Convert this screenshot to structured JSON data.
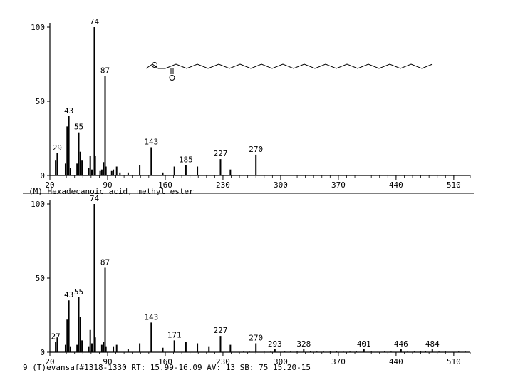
{
  "chart_data": [
    {
      "type": "bar",
      "caption": "(M) Hexadecanoic acid, methyl ester",
      "xlim": [
        20,
        530
      ],
      "ylim": [
        0,
        100
      ],
      "x_ticks": [
        "20",
        "90",
        "160",
        "230",
        "300",
        "370",
        "440",
        "510"
      ],
      "y_ticks": [
        "0",
        "50",
        "100"
      ],
      "peaks": [
        {
          "x": 27,
          "y": 10
        },
        {
          "x": 29,
          "y": 15
        },
        {
          "x": 39,
          "y": 8
        },
        {
          "x": 41,
          "y": 33
        },
        {
          "x": 43,
          "y": 40
        },
        {
          "x": 45,
          "y": 5
        },
        {
          "x": 53,
          "y": 8
        },
        {
          "x": 55,
          "y": 29
        },
        {
          "x": 57,
          "y": 16
        },
        {
          "x": 59,
          "y": 10
        },
        {
          "x": 67,
          "y": 5
        },
        {
          "x": 69,
          "y": 13
        },
        {
          "x": 71,
          "y": 4
        },
        {
          "x": 74,
          "y": 100
        },
        {
          "x": 75,
          "y": 13
        },
        {
          "x": 81,
          "y": 3
        },
        {
          "x": 83,
          "y": 4
        },
        {
          "x": 85,
          "y": 9
        },
        {
          "x": 87,
          "y": 67
        },
        {
          "x": 88,
          "y": 6
        },
        {
          "x": 95,
          "y": 3
        },
        {
          "x": 97,
          "y": 4
        },
        {
          "x": 101,
          "y": 6
        },
        {
          "x": 105,
          "y": 2
        },
        {
          "x": 115,
          "y": 2
        },
        {
          "x": 129,
          "y": 7
        },
        {
          "x": 143,
          "y": 19
        },
        {
          "x": 157,
          "y": 2
        },
        {
          "x": 171,
          "y": 6
        },
        {
          "x": 185,
          "y": 7
        },
        {
          "x": 199,
          "y": 6
        },
        {
          "x": 227,
          "y": 11
        },
        {
          "x": 239,
          "y": 4
        },
        {
          "x": 270,
          "y": 14
        }
      ],
      "peak_labels": [
        {
          "x": 29,
          "y": 15,
          "text": "29"
        },
        {
          "x": 43,
          "y": 40,
          "text": "43"
        },
        {
          "x": 55,
          "y": 29,
          "text": "55"
        },
        {
          "x": 74,
          "y": 100,
          "text": "74"
        },
        {
          "x": 87,
          "y": 67,
          "text": "87"
        },
        {
          "x": 143,
          "y": 19,
          "text": "143"
        },
        {
          "x": 185,
          "y": 7,
          "text": "185"
        },
        {
          "x": 227,
          "y": 11,
          "text": "227"
        },
        {
          "x": 270,
          "y": 14,
          "text": "270"
        }
      ],
      "structure": "O=C(OC)CCCCCCCCCCCCCCC"
    },
    {
      "type": "bar",
      "caption": "9 (T)evansaf#1318-1330 RT: 15.99-16.09 AV: 13 SB: 75 15.20-15",
      "xlim": [
        20,
        530
      ],
      "ylim": [
        0,
        100
      ],
      "x_ticks": [
        "20",
        "90",
        "160",
        "230",
        "300",
        "370",
        "440",
        "510"
      ],
      "y_ticks": [
        "0",
        "50",
        "100"
      ],
      "peaks": [
        {
          "x": 27,
          "y": 7
        },
        {
          "x": 29,
          "y": 10
        },
        {
          "x": 39,
          "y": 5
        },
        {
          "x": 41,
          "y": 22
        },
        {
          "x": 43,
          "y": 35
        },
        {
          "x": 45,
          "y": 4
        },
        {
          "x": 53,
          "y": 5
        },
        {
          "x": 55,
          "y": 37
        },
        {
          "x": 57,
          "y": 24
        },
        {
          "x": 59,
          "y": 8
        },
        {
          "x": 67,
          "y": 4
        },
        {
          "x": 69,
          "y": 15
        },
        {
          "x": 71,
          "y": 6
        },
        {
          "x": 74,
          "y": 100
        },
        {
          "x": 75,
          "y": 10
        },
        {
          "x": 83,
          "y": 5
        },
        {
          "x": 85,
          "y": 7
        },
        {
          "x": 87,
          "y": 57
        },
        {
          "x": 88,
          "y": 4
        },
        {
          "x": 97,
          "y": 4
        },
        {
          "x": 101,
          "y": 5
        },
        {
          "x": 115,
          "y": 2
        },
        {
          "x": 129,
          "y": 6
        },
        {
          "x": 143,
          "y": 20
        },
        {
          "x": 157,
          "y": 3
        },
        {
          "x": 171,
          "y": 8
        },
        {
          "x": 185,
          "y": 7
        },
        {
          "x": 199,
          "y": 6
        },
        {
          "x": 213,
          "y": 4
        },
        {
          "x": 227,
          "y": 11
        },
        {
          "x": 239,
          "y": 5
        },
        {
          "x": 270,
          "y": 6
        },
        {
          "x": 293,
          "y": 2
        },
        {
          "x": 328,
          "y": 2
        },
        {
          "x": 401,
          "y": 2
        },
        {
          "x": 446,
          "y": 2
        },
        {
          "x": 484,
          "y": 2
        }
      ],
      "noise": [
        255,
        262,
        280,
        288,
        305,
        312,
        320,
        336,
        344,
        352,
        360,
        368,
        376,
        384,
        392,
        410,
        418,
        426,
        434,
        454,
        462,
        470,
        476,
        492,
        500,
        508,
        516,
        524
      ],
      "peak_labels": [
        {
          "x": 27,
          "y": 7,
          "text": "27"
        },
        {
          "x": 43,
          "y": 35,
          "text": "43"
        },
        {
          "x": 55,
          "y": 37,
          "text": "55"
        },
        {
          "x": 74,
          "y": 100,
          "text": "74"
        },
        {
          "x": 87,
          "y": 57,
          "text": "87"
        },
        {
          "x": 143,
          "y": 20,
          "text": "143"
        },
        {
          "x": 171,
          "y": 8,
          "text": "171"
        },
        {
          "x": 227,
          "y": 11,
          "text": "227"
        },
        {
          "x": 270,
          "y": 6,
          "text": "270"
        },
        {
          "x": 293,
          "y": 2,
          "text": "293"
        },
        {
          "x": 328,
          "y": 2,
          "text": "328"
        },
        {
          "x": 401,
          "y": 2,
          "text": "401"
        },
        {
          "x": 446,
          "y": 2,
          "text": "446"
        },
        {
          "x": 484,
          "y": 2,
          "text": "484"
        }
      ]
    }
  ]
}
